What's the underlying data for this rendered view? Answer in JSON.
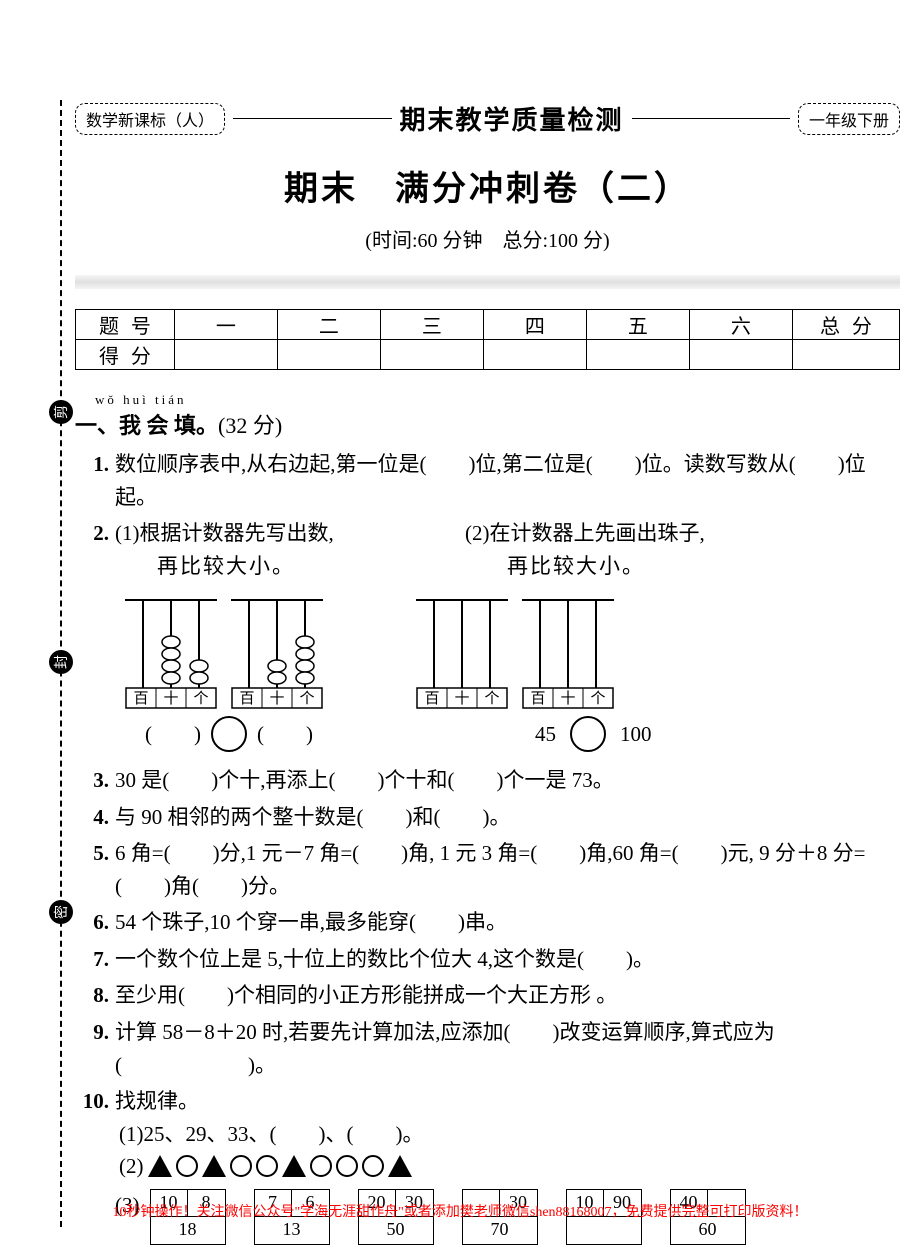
{
  "header": {
    "left_pill": "数学新课标（人）",
    "center": "期末教学质量检测",
    "right_pill": "一年级下册"
  },
  "title": "期末　满分冲刺卷（二）",
  "subtitle": "(时间:60 分钟　总分:100 分)",
  "score_table": {
    "row1": [
      "题号",
      "一",
      "二",
      "三",
      "四",
      "五",
      "六",
      "总分"
    ],
    "row2_label": "得分"
  },
  "side_labels": {
    "a": "剪",
    "b": "封",
    "c": "密"
  },
  "section1": {
    "pinyin": "wǒ huì tián",
    "heading": "一、我 会 填。",
    "points": "(32 分)"
  },
  "q1": "数位顺序表中,从右边起,第一位是(　　)位,第二位是(　　)位。读数写数从(　　)位起。",
  "q2_a": "(1)根据计数器先写出数,",
  "q2_a2": "再比较大小。",
  "q2_b": "(2)在计数器上先画出珠子,",
  "q2_b2": "再比较大小。",
  "abacus_labels": [
    "百",
    "十",
    "个"
  ],
  "compare": {
    "left_l": "(　　)",
    "left_r": "(　　)",
    "right_l": "45",
    "right_r": "100"
  },
  "q3": "30 是(　　)个十,再添上(　　)个十和(　　)个一是 73。",
  "q4": "与 90 相邻的两个整十数是(　　)和(　　)。",
  "q5": "6 角=(　　)分,1 元－7 角=(　　)角, 1 元 3 角=(　　)角,60 角=(　　)元, 9 分＋8 分=(　　)角(　　)分。",
  "q6": "54 个珠子,10 个穿一串,最多能穿(　　)串。",
  "q7": "一个数个位上是 5,十位上的数比个位大 4,这个数是(　　)。",
  "q8": "至少用(　　)个相同的小正方形能拼成一个大正方形 。",
  "q9": "计算 58－8＋20 时,若要先计算加法,应添加(　　)改变运算顺序,算式应为(　　　　　　)。",
  "q10": {
    "label": "找规律。",
    "p1": "(1)25、29、33、(　　)、(　　)。",
    "p2_label": "(2)",
    "p3_label": "(3)",
    "boxes": [
      {
        "tl": "10",
        "tr": "8",
        "b": "18"
      },
      {
        "tl": "7",
        "tr": "6",
        "b": "13"
      },
      {
        "tl": "20",
        "tr": "30",
        "b": "50"
      },
      {
        "tl": "",
        "tr": "30",
        "b": "70"
      },
      {
        "tl": "10",
        "tr": "90",
        "b": ""
      },
      {
        "tl": "40",
        "tr": "",
        "b": "60"
      }
    ]
  },
  "footer": "10秒钟操作！关注微信公众号\"学海无涯甜作舟\"或者添加樊老师微信shen88168007，免费提供完整可打印版资料！"
}
